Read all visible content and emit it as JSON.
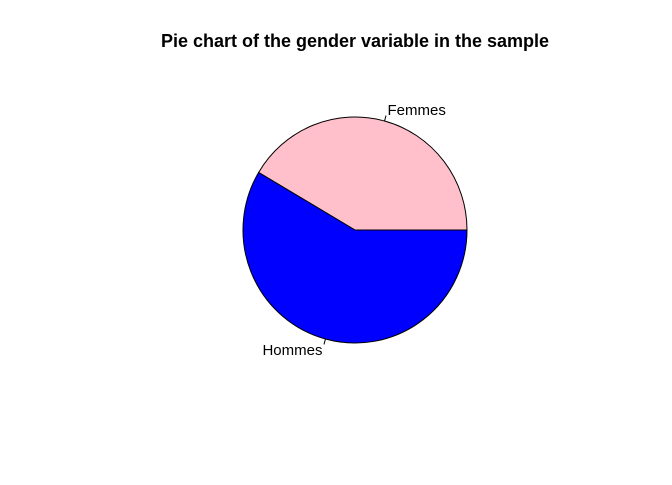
{
  "chart_data": {
    "type": "pie",
    "title": "Pie chart of the gender variable in the sample",
    "slices": [
      {
        "label": "Femmes",
        "value": 41.5,
        "color": "#FFC0CB"
      },
      {
        "label": "Hommes",
        "value": 58.5,
        "color": "#0000FF"
      }
    ],
    "start_angle_deg": 0,
    "direction": "counterclockwise",
    "border_color": "#000000"
  }
}
